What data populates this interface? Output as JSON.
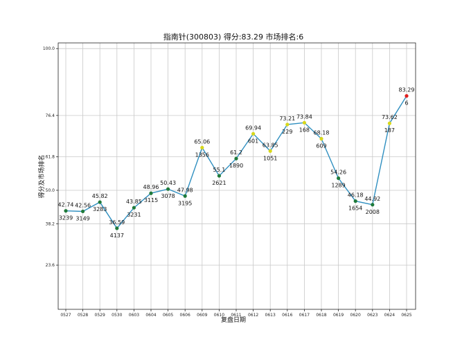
{
  "chart_data": {
    "type": "line",
    "title": "指南针(300803) 得分:83.29  市场排名:6",
    "xlabel": "复盘日期",
    "ylabel": "得分及市场排名",
    "categories": [
      "0527",
      "0528",
      "0529",
      "0530",
      "0603",
      "0604",
      "0605",
      "0606",
      "0609",
      "0610",
      "0611",
      "0612",
      "0613",
      "0616",
      "0617",
      "0618",
      "0619",
      "0620",
      "0623",
      "0624",
      "0625"
    ],
    "scores": [
      42.74,
      42.56,
      45.82,
      36.59,
      43.85,
      48.96,
      50.43,
      47.98,
      65.06,
      55.1,
      61.2,
      69.94,
      63.85,
      73.21,
      73.84,
      68.18,
      54.26,
      46.18,
      44.92,
      73.62,
      83.29
    ],
    "ranks": [
      "3239",
      "3149",
      "3283",
      "4137",
      "3231",
      "3115",
      "3078",
      "3195",
      "1356",
      "2621",
      "1890",
      "601",
      "1051",
      "229",
      "168",
      "609",
      "1289",
      "1654",
      "2008",
      "187",
      "6"
    ],
    "marker_colors": [
      "green",
      "green",
      "green",
      "green",
      "green",
      "green",
      "green",
      "green",
      "yellow",
      "green",
      "green",
      "yellow",
      "yellow",
      "yellow",
      "yellow",
      "yellow",
      "green",
      "green",
      "green",
      "yellow",
      "red"
    ],
    "yticks": [
      "23.6",
      "38.2",
      "50.0",
      "61.8",
      "76.4",
      "100.0"
    ],
    "ylim": [
      8,
      102
    ],
    "grid": true,
    "colors": {
      "line": "#2f8fc0",
      "green": "#1f7a3a",
      "yellow": "#d8d81a",
      "red": "#e02020",
      "grid": "#c8c8c8"
    }
  }
}
